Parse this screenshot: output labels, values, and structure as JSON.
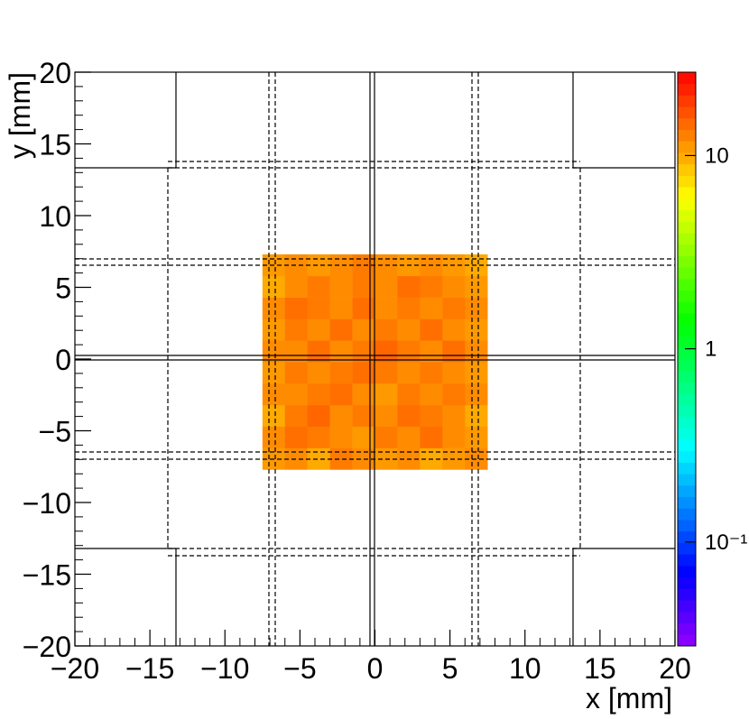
{
  "chart_data": {
    "type": "heatmap",
    "x_label": "x [mm]",
    "y_label": "y [mm]",
    "xlim": [
      -20,
      20
    ],
    "ylim": [
      -20,
      20
    ],
    "xticks": [
      {
        "value": -20,
        "label": "−20"
      },
      {
        "value": -15,
        "label": "−15"
      },
      {
        "value": -10,
        "label": "−10"
      },
      {
        "value": -5,
        "label": "−5"
      },
      0,
      5,
      10,
      15,
      20
    ],
    "yticks": [
      {
        "value": -20,
        "label": "−20"
      },
      {
        "value": -15,
        "label": "−15"
      },
      {
        "value": -10,
        "label": "−10"
      },
      {
        "value": -5,
        "label": "−5"
      },
      0,
      5,
      10,
      15,
      20
    ],
    "x_bins": [
      -7.5,
      -6,
      -4.5,
      -3,
      -1.5,
      0,
      1.5,
      3,
      4.5,
      6,
      7.5
    ],
    "y_bins": [
      -7.7,
      -6.2,
      -4.7,
      -3.2,
      -1.7,
      -0.2,
      1.3,
      2.8,
      4.3,
      5.8,
      7.3
    ],
    "z": [
      [
        11,
        12,
        10,
        13,
        12,
        11,
        12,
        10,
        11,
        12
      ],
      [
        12,
        14,
        13,
        12,
        11,
        13,
        12,
        14,
        12,
        11
      ],
      [
        10,
        13,
        15,
        12,
        13,
        12,
        14,
        13,
        12,
        10
      ],
      [
        12,
        12,
        13,
        14,
        12,
        11,
        13,
        12,
        13,
        12
      ],
      [
        11,
        13,
        12,
        13,
        14,
        13,
        12,
        13,
        12,
        11
      ],
      [
        12,
        12,
        14,
        12,
        13,
        15,
        13,
        12,
        14,
        12
      ],
      [
        11,
        13,
        12,
        14,
        12,
        13,
        12,
        14,
        12,
        11
      ],
      [
        12,
        14,
        13,
        12,
        14,
        12,
        13,
        12,
        13,
        12
      ],
      [
        10,
        12,
        13,
        12,
        13,
        12,
        14,
        13,
        12,
        11
      ],
      [
        11,
        12,
        11,
        12,
        13,
        12,
        11,
        12,
        11,
        10
      ]
    ],
    "zlim": [
      0.029,
      27
    ],
    "zscale": "log",
    "zticks": [
      {
        "value": 0.1,
        "label": "10⁻¹"
      },
      1,
      10
    ]
  }
}
